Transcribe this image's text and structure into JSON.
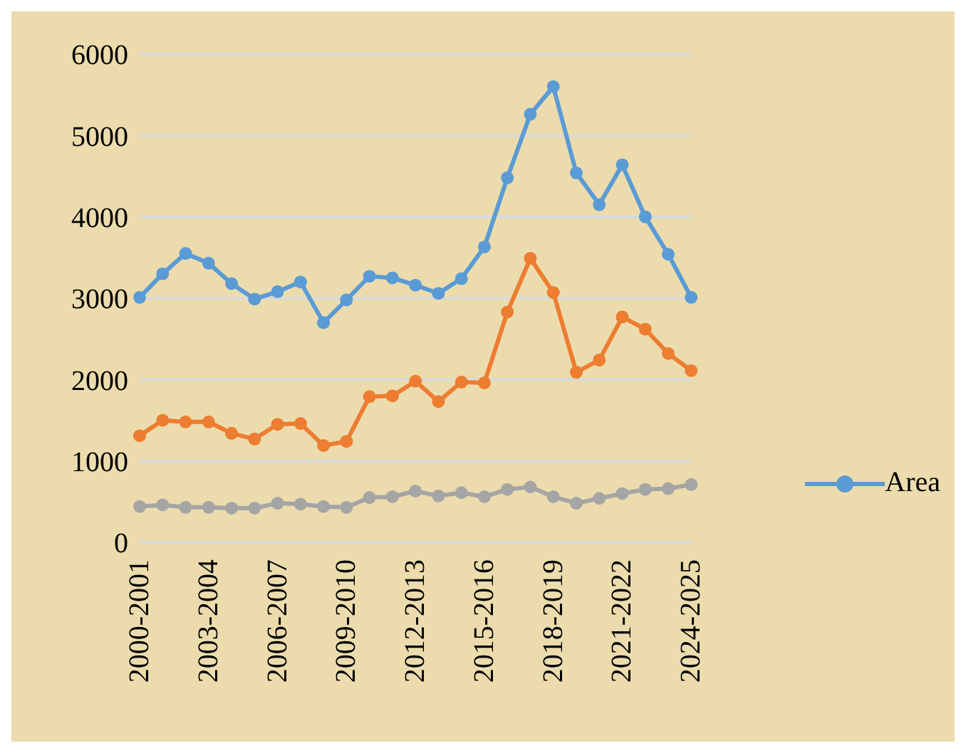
{
  "chart_data": {
    "type": "line",
    "categories": [
      "2000-2001",
      null,
      null,
      "2003-2004",
      null,
      null,
      "2006-2007",
      null,
      null,
      "2009-2010",
      null,
      null,
      "2012-2013",
      null,
      null,
      "2015-2016",
      null,
      null,
      "2018-2019",
      null,
      null,
      "2021-2022",
      null,
      null,
      "2024-2025"
    ],
    "series": [
      {
        "name": "Area",
        "color": "#5b9bd5",
        "values": [
          3010,
          3300,
          3550,
          3430,
          3180,
          2990,
          3080,
          3200,
          2700,
          2980,
          3270,
          3250,
          3160,
          3060,
          3240,
          3630,
          4480,
          5260,
          5600,
          4540,
          4150,
          4640,
          4000,
          3540,
          3010
        ]
      },
      {
        "color": "#ed7d31",
        "values": [
          1310,
          1500,
          1480,
          1480,
          1340,
          1270,
          1450,
          1460,
          1190,
          1240,
          1790,
          1800,
          1980,
          1730,
          1970,
          1960,
          2830,
          3490,
          3070,
          2090,
          2240,
          2770,
          2620,
          2320,
          2110
        ]
      },
      {
        "color": "#a5a5a5",
        "values": [
          440,
          460,
          430,
          430,
          420,
          420,
          480,
          470,
          440,
          430,
          550,
          560,
          630,
          570,
          610,
          560,
          650,
          680,
          560,
          480,
          540,
          600,
          650,
          660,
          710
        ]
      }
    ],
    "ylim": [
      0,
      6000
    ],
    "yticks": [
      0,
      1000,
      2000,
      3000,
      4000,
      5000,
      6000
    ],
    "grid": "y",
    "legend": "right",
    "marker": "circle",
    "line_style": "solid"
  }
}
